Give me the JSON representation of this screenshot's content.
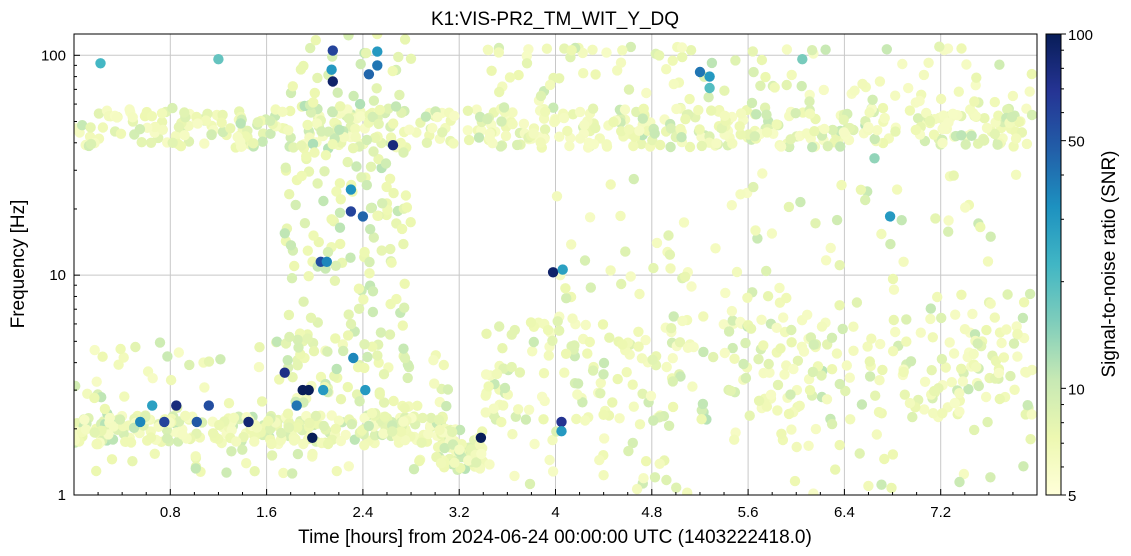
{
  "chart_data": {
    "type": "scatter",
    "title": "K1:VIS-PR2_TM_WIT_Y_DQ",
    "xlabel": "Time [hours] from 2024-06-24 00:00:00 UTC (1403222418.0)",
    "ylabel": "Frequency [Hz]",
    "xlim": [
      0,
      8
    ],
    "ylim": [
      1,
      125
    ],
    "yscale": "log",
    "grid": true,
    "x_ticks": [
      0.8,
      1.6,
      2.4,
      3.2,
      4,
      4.8,
      5.6,
      6.4,
      7.2
    ],
    "x_tick_labels": [
      "0.8",
      "1.6",
      "2.4",
      "3.2",
      "4",
      "4.8",
      "5.6",
      "6.4",
      "7.2"
    ],
    "y_ticks": [
      1,
      10,
      100
    ],
    "y_tick_labels": [
      "1",
      "10",
      "100"
    ],
    "colorbar": {
      "label": "Signal-to-noise ratio (SNR)",
      "scale": "log",
      "range": [
        5,
        100
      ],
      "ticks": [
        5,
        10,
        50,
        100
      ],
      "tick_labels": [
        "5",
        "10",
        "50",
        "100"
      ],
      "colormap": "YlGnBu",
      "colors": [
        "#ffffd9",
        "#edf8b1",
        "#c7e9b4",
        "#7fcdbb",
        "#41b6c4",
        "#1d91c0",
        "#225ea8",
        "#253494",
        "#081d58"
      ]
    },
    "clusters": [
      {
        "x_range": [
          0.0,
          8.0
        ],
        "freq_range": [
          38,
          58
        ],
        "snr": 6,
        "count": 520
      },
      {
        "x_range": [
          0.0,
          3.2
        ],
        "freq_range": [
          1.7,
          2.3
        ],
        "snr": 6,
        "count": 260
      },
      {
        "x_range": [
          0.0,
          3.2
        ],
        "freq_range": [
          1.2,
          5.0
        ],
        "snr": 6,
        "count": 110
      },
      {
        "x_range": [
          3.0,
          3.4
        ],
        "freq_range": [
          1.3,
          2.0
        ],
        "snr": 6,
        "count": 50
      },
      {
        "x_range": [
          1.75,
          2.8
        ],
        "freq_range": [
          2.0,
          125
        ],
        "snr": 7,
        "count": 220
      },
      {
        "x_range": [
          3.4,
          8.0
        ],
        "freq_range": [
          2.2,
          6.5
        ],
        "snr": 6,
        "count": 330
      },
      {
        "x_range": [
          3.4,
          8.0
        ],
        "freq_range": [
          60,
          110
        ],
        "snr": 6,
        "count": 100
      },
      {
        "x_range": [
          3.2,
          8.0
        ],
        "freq_range": [
          1.0,
          2.2
        ],
        "snr": 6,
        "count": 60
      },
      {
        "x_range": [
          4.0,
          8.0
        ],
        "freq_range": [
          6.5,
          30
        ],
        "snr": 6,
        "count": 90
      }
    ],
    "points": [
      {
        "x": 0.22,
        "y": 92,
        "snr": 22
      },
      {
        "x": 1.2,
        "y": 96,
        "snr": 18
      },
      {
        "x": 0.85,
        "y": 2.55,
        "snr": 80
      },
      {
        "x": 1.12,
        "y": 2.55,
        "snr": 55
      },
      {
        "x": 0.65,
        "y": 2.55,
        "snr": 28
      },
      {
        "x": 0.55,
        "y": 2.15,
        "snr": 35
      },
      {
        "x": 0.75,
        "y": 2.15,
        "snr": 60
      },
      {
        "x": 1.02,
        "y": 2.15,
        "snr": 50
      },
      {
        "x": 1.45,
        "y": 2.15,
        "snr": 85
      },
      {
        "x": 1.75,
        "y": 3.6,
        "snr": 75
      },
      {
        "x": 1.9,
        "y": 3.0,
        "snr": 100
      },
      {
        "x": 1.95,
        "y": 3.0,
        "snr": 100
      },
      {
        "x": 2.07,
        "y": 3.0,
        "snr": 30
      },
      {
        "x": 1.85,
        "y": 2.55,
        "snr": 40
      },
      {
        "x": 1.98,
        "y": 1.82,
        "snr": 100
      },
      {
        "x": 2.15,
        "y": 105,
        "snr": 60
      },
      {
        "x": 2.14,
        "y": 86,
        "snr": 30
      },
      {
        "x": 2.15,
        "y": 76,
        "snr": 90
      },
      {
        "x": 2.52,
        "y": 90,
        "snr": 40
      },
      {
        "x": 2.45,
        "y": 82,
        "snr": 45
      },
      {
        "x": 2.52,
        "y": 104,
        "snr": 30
      },
      {
        "x": 2.65,
        "y": 39,
        "snr": 80
      },
      {
        "x": 2.3,
        "y": 24.5,
        "snr": 32
      },
      {
        "x": 2.3,
        "y": 19.5,
        "snr": 60
      },
      {
        "x": 2.4,
        "y": 18.5,
        "snr": 45
      },
      {
        "x": 2.05,
        "y": 11.5,
        "snr": 55
      },
      {
        "x": 2.1,
        "y": 11.5,
        "snr": 35
      },
      {
        "x": 2.32,
        "y": 4.2,
        "snr": 35
      },
      {
        "x": 2.42,
        "y": 3.0,
        "snr": 30
      },
      {
        "x": 3.38,
        "y": 1.82,
        "snr": 100
      },
      {
        "x": 3.98,
        "y": 10.3,
        "snr": 90
      },
      {
        "x": 4.06,
        "y": 10.6,
        "snr": 28
      },
      {
        "x": 4.05,
        "y": 2.15,
        "snr": 70
      },
      {
        "x": 4.05,
        "y": 1.95,
        "snr": 30
      },
      {
        "x": 5.28,
        "y": 80,
        "snr": 30
      },
      {
        "x": 5.28,
        "y": 71,
        "snr": 20
      },
      {
        "x": 5.2,
        "y": 84,
        "snr": 40
      },
      {
        "x": 6.05,
        "y": 96,
        "snr": 16
      },
      {
        "x": 6.78,
        "y": 18.5,
        "snr": 30
      },
      {
        "x": 6.65,
        "y": 34,
        "snr": 14
      }
    ]
  }
}
